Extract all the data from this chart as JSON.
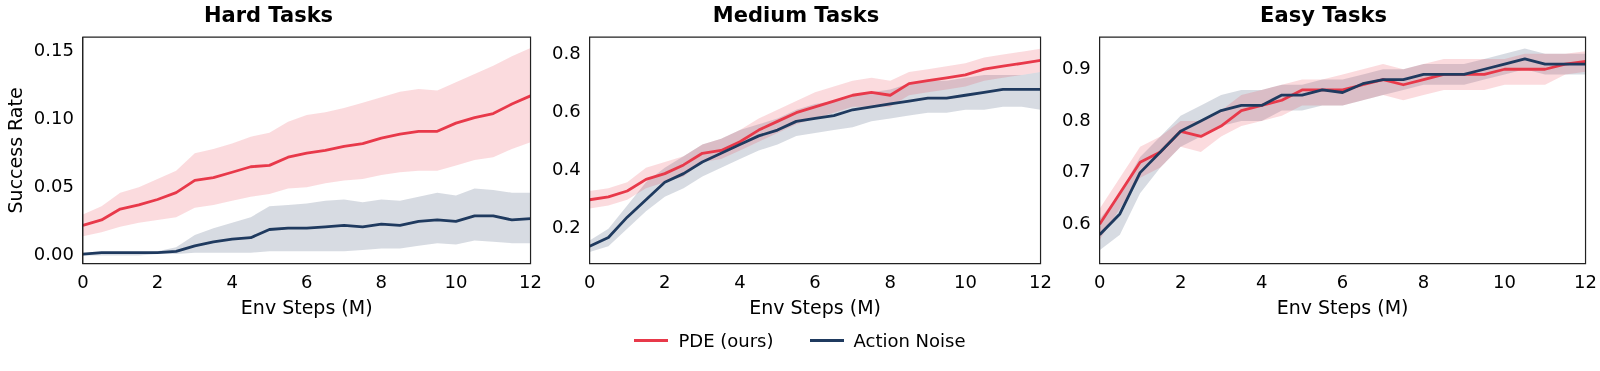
{
  "chart_data": [
    {
      "type": "line",
      "title": "Hard Tasks",
      "xlabel": "Env Steps (M)",
      "ylabel": "Success Rate",
      "x": [
        0,
        0.5,
        1,
        1.5,
        2,
        2.5,
        3,
        3.5,
        4,
        4.5,
        5,
        5.5,
        6,
        6.5,
        7,
        7.5,
        8,
        8.5,
        9,
        9.5,
        10,
        10.5,
        11,
        11.5,
        12
      ],
      "xlim": [
        0,
        12
      ],
      "xticks": [
        0,
        2,
        4,
        6,
        8,
        10,
        12
      ],
      "ylim": [
        -0.006,
        0.16
      ],
      "yticks": [
        {
          "value": 0,
          "label": "0.00"
        },
        0.05,
        {
          "value": 0.1,
          "label": "0.10"
        },
        0.15
      ],
      "grid": false,
      "legend": "bottom",
      "line_style": "solid",
      "marker": "none",
      "series": [
        {
          "name": "PDE (ours)",
          "color": "#e8394a",
          "values": [
            0.022,
            0.026,
            0.034,
            0.037,
            0.041,
            0.046,
            0.055,
            0.057,
            0.061,
            0.065,
            0.066,
            0.072,
            0.075,
            0.077,
            0.08,
            0.082,
            0.086,
            0.089,
            0.091,
            0.091,
            0.097,
            0.101,
            0.104,
            0.111,
            0.117
          ],
          "upper": [
            0.03,
            0.036,
            0.046,
            0.05,
            0.056,
            0.062,
            0.075,
            0.078,
            0.082,
            0.087,
            0.09,
            0.098,
            0.103,
            0.105,
            0.108,
            0.112,
            0.116,
            0.12,
            0.122,
            0.121,
            0.127,
            0.133,
            0.139,
            0.146,
            0.152
          ],
          "lower": [
            0.014,
            0.017,
            0.021,
            0.024,
            0.026,
            0.028,
            0.035,
            0.037,
            0.04,
            0.043,
            0.045,
            0.049,
            0.05,
            0.053,
            0.055,
            0.056,
            0.059,
            0.061,
            0.062,
            0.062,
            0.066,
            0.07,
            0.072,
            0.078,
            0.083
          ]
        },
        {
          "name": "Action Noise",
          "color": "#1f3a5f",
          "values": [
            0.001,
            0.002,
            0.002,
            0.002,
            0.002,
            0.003,
            0.007,
            0.01,
            0.012,
            0.013,
            0.019,
            0.02,
            0.02,
            0.021,
            0.022,
            0.021,
            0.023,
            0.022,
            0.025,
            0.026,
            0.025,
            0.029,
            0.029,
            0.026,
            0.027
          ],
          "upper": [
            0.002,
            0.002,
            0.002,
            0.002,
            0.003,
            0.006,
            0.015,
            0.02,
            0.024,
            0.028,
            0.036,
            0.037,
            0.038,
            0.04,
            0.041,
            0.039,
            0.041,
            0.04,
            0.043,
            0.046,
            0.044,
            0.049,
            0.048,
            0.046,
            0.046
          ],
          "lower": [
            0,
            0,
            0,
            0,
            0.001,
            0.001,
            0.002,
            0.002,
            0.002,
            0.002,
            0.003,
            0.003,
            0.003,
            0.003,
            0.003,
            0.004,
            0.005,
            0.005,
            0.007,
            0.009,
            0.008,
            0.011,
            0.01,
            0.009,
            0.009
          ]
        }
      ]
    },
    {
      "type": "line",
      "title": "Medium Tasks",
      "xlabel": "Env Steps (M)",
      "x": [
        0,
        0.5,
        1,
        1.5,
        2,
        2.5,
        3,
        3.5,
        4,
        4.5,
        5,
        5.5,
        6,
        6.5,
        7,
        7.5,
        8,
        8.5,
        9,
        9.5,
        10,
        10.5,
        11,
        11.5,
        12
      ],
      "xlim": [
        0,
        12
      ],
      "xticks": [
        0,
        2,
        4,
        6,
        8,
        10,
        12
      ],
      "ylim": [
        0.08,
        0.86
      ],
      "yticks": [
        0.2,
        0.4,
        0.6,
        0.8
      ],
      "grid": false,
      "line_style": "solid",
      "marker": "none",
      "series": [
        {
          "color": "#e8394a",
          "values": [
            0.3,
            0.31,
            0.33,
            0.37,
            0.39,
            0.42,
            0.46,
            0.47,
            0.5,
            0.54,
            0.57,
            0.6,
            0.62,
            0.64,
            0.66,
            0.67,
            0.66,
            0.7,
            0.71,
            0.72,
            0.73,
            0.75,
            0.76,
            0.77,
            0.78
          ],
          "upper": [
            0.33,
            0.34,
            0.36,
            0.41,
            0.43,
            0.45,
            0.49,
            0.51,
            0.54,
            0.58,
            0.61,
            0.64,
            0.67,
            0.69,
            0.71,
            0.72,
            0.71,
            0.74,
            0.75,
            0.76,
            0.77,
            0.79,
            0.8,
            0.81,
            0.82
          ],
          "lower": [
            0.27,
            0.28,
            0.3,
            0.34,
            0.36,
            0.38,
            0.43,
            0.44,
            0.47,
            0.5,
            0.53,
            0.56,
            0.58,
            0.6,
            0.62,
            0.62,
            0.62,
            0.66,
            0.67,
            0.68,
            0.69,
            0.71,
            0.72,
            0.73,
            0.74
          ]
        },
        {
          "color": "#1f3a5f",
          "values": [
            0.14,
            0.17,
            0.24,
            0.3,
            0.36,
            0.39,
            0.43,
            0.46,
            0.49,
            0.52,
            0.54,
            0.57,
            0.58,
            0.59,
            0.61,
            0.62,
            0.63,
            0.64,
            0.65,
            0.65,
            0.66,
            0.67,
            0.68,
            0.68,
            0.68
          ],
          "upper": [
            0.16,
            0.2,
            0.28,
            0.36,
            0.41,
            0.45,
            0.49,
            0.51,
            0.54,
            0.56,
            0.58,
            0.61,
            0.63,
            0.64,
            0.66,
            0.67,
            0.68,
            0.7,
            0.71,
            0.71,
            0.72,
            0.73,
            0.73,
            0.73,
            0.74
          ],
          "lower": [
            0.12,
            0.14,
            0.2,
            0.26,
            0.31,
            0.34,
            0.38,
            0.41,
            0.44,
            0.47,
            0.49,
            0.52,
            0.53,
            0.54,
            0.55,
            0.57,
            0.58,
            0.59,
            0.6,
            0.6,
            0.61,
            0.61,
            0.62,
            0.62,
            0.61
          ]
        }
      ]
    },
    {
      "type": "line",
      "title": "Easy Tasks",
      "xlabel": "Env Steps (M)",
      "x": [
        0,
        0.5,
        1,
        1.5,
        2,
        2.5,
        3,
        3.5,
        4,
        4.5,
        5,
        5.5,
        6,
        6.5,
        7,
        7.5,
        8,
        8.5,
        9,
        9.5,
        10,
        10.5,
        11,
        11.5,
        12
      ],
      "xlim": [
        0,
        12
      ],
      "xticks": [
        0,
        2,
        4,
        6,
        8,
        10,
        12
      ],
      "ylim": [
        0.524,
        0.962
      ],
      "yticks": [
        0.6,
        0.7,
        0.8,
        0.9
      ],
      "grid": false,
      "line_style": "solid",
      "marker": "none",
      "series": [
        {
          "color": "#e8394a",
          "values": [
            0.6,
            0.66,
            0.72,
            0.74,
            0.78,
            0.77,
            0.79,
            0.82,
            0.83,
            0.84,
            0.86,
            0.86,
            0.86,
            0.87,
            0.88,
            0.87,
            0.88,
            0.89,
            0.89,
            0.89,
            0.9,
            0.9,
            0.9,
            0.91,
            0.915
          ],
          "upper": [
            0.63,
            0.69,
            0.75,
            0.77,
            0.8,
            0.8,
            0.82,
            0.85,
            0.86,
            0.87,
            0.88,
            0.88,
            0.89,
            0.9,
            0.91,
            0.9,
            0.91,
            0.92,
            0.92,
            0.92,
            0.92,
            0.93,
            0.93,
            0.93,
            0.935
          ],
          "lower": [
            0.57,
            0.63,
            0.69,
            0.71,
            0.75,
            0.74,
            0.77,
            0.79,
            0.8,
            0.81,
            0.83,
            0.83,
            0.83,
            0.84,
            0.85,
            0.84,
            0.85,
            0.86,
            0.86,
            0.86,
            0.87,
            0.87,
            0.87,
            0.89,
            0.895
          ]
        },
        {
          "color": "#1f3a5f",
          "values": [
            0.58,
            0.62,
            0.7,
            0.74,
            0.78,
            0.8,
            0.82,
            0.83,
            0.83,
            0.85,
            0.85,
            0.86,
            0.855,
            0.872,
            0.88,
            0.88,
            0.89,
            0.89,
            0.89,
            0.9,
            0.91,
            0.92,
            0.91,
            0.91,
            0.91
          ],
          "upper": [
            0.61,
            0.66,
            0.73,
            0.77,
            0.81,
            0.83,
            0.85,
            0.86,
            0.86,
            0.87,
            0.87,
            0.88,
            0.88,
            0.89,
            0.9,
            0.9,
            0.91,
            0.91,
            0.91,
            0.92,
            0.93,
            0.94,
            0.93,
            0.93,
            0.93
          ],
          "lower": [
            0.55,
            0.58,
            0.66,
            0.71,
            0.75,
            0.77,
            0.79,
            0.8,
            0.8,
            0.82,
            0.82,
            0.83,
            0.83,
            0.84,
            0.85,
            0.86,
            0.87,
            0.87,
            0.87,
            0.88,
            0.89,
            0.9,
            0.89,
            0.89,
            0.89
          ]
        }
      ]
    }
  ]
}
